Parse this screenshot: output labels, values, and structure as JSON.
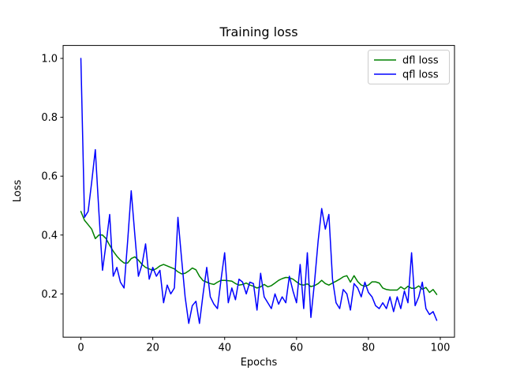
{
  "figure": {
    "background": "#ffffff"
  },
  "chart_data": {
    "type": "line",
    "title": "Training loss",
    "xlabel": "Epochs",
    "ylabel": "Loss",
    "x_is_index": true,
    "n_points": 100,
    "xlim": [
      -4.95,
      103.95
    ],
    "ylim": [
      0.053,
      1.044
    ],
    "x_ticks": [
      0,
      20,
      40,
      60,
      80,
      100
    ],
    "y_ticks": [
      0.2,
      0.4,
      0.6,
      0.8,
      1.0
    ],
    "grid": false,
    "legend_position": "upper right",
    "axis_color": "#000000",
    "series": [
      {
        "name": "dfl loss",
        "color": "#008000",
        "values": [
          0.48,
          0.45,
          0.435,
          0.42,
          0.388,
          0.4,
          0.4,
          0.388,
          0.365,
          0.345,
          0.328,
          0.315,
          0.305,
          0.305,
          0.32,
          0.326,
          0.315,
          0.3,
          0.29,
          0.285,
          0.28,
          0.286,
          0.295,
          0.3,
          0.295,
          0.29,
          0.285,
          0.275,
          0.268,
          0.27,
          0.278,
          0.288,
          0.282,
          0.26,
          0.245,
          0.24,
          0.235,
          0.232,
          0.24,
          0.246,
          0.246,
          0.245,
          0.243,
          0.235,
          0.23,
          0.232,
          0.237,
          0.23,
          0.226,
          0.22,
          0.224,
          0.232,
          0.224,
          0.228,
          0.237,
          0.246,
          0.252,
          0.256,
          0.255,
          0.25,
          0.241,
          0.232,
          0.23,
          0.234,
          0.225,
          0.228,
          0.235,
          0.246,
          0.235,
          0.23,
          0.237,
          0.243,
          0.25,
          0.258,
          0.262,
          0.24,
          0.262,
          0.242,
          0.23,
          0.226,
          0.23,
          0.241,
          0.241,
          0.237,
          0.22,
          0.215,
          0.213,
          0.213,
          0.213,
          0.224,
          0.216,
          0.226,
          0.219,
          0.219,
          0.227,
          0.216,
          0.222,
          0.205,
          0.215,
          0.198
        ]
      },
      {
        "name": "qfl loss",
        "color": "#0000ff",
        "values": [
          1.0,
          0.46,
          0.48,
          0.58,
          0.69,
          0.48,
          0.28,
          0.37,
          0.47,
          0.26,
          0.29,
          0.24,
          0.22,
          0.38,
          0.55,
          0.4,
          0.26,
          0.3,
          0.37,
          0.25,
          0.29,
          0.26,
          0.28,
          0.17,
          0.23,
          0.2,
          0.22,
          0.46,
          0.32,
          0.19,
          0.1,
          0.16,
          0.175,
          0.1,
          0.2,
          0.29,
          0.19,
          0.165,
          0.15,
          0.25,
          0.34,
          0.17,
          0.22,
          0.18,
          0.25,
          0.24,
          0.2,
          0.24,
          0.235,
          0.145,
          0.27,
          0.19,
          0.17,
          0.15,
          0.2,
          0.165,
          0.19,
          0.17,
          0.26,
          0.21,
          0.17,
          0.3,
          0.15,
          0.34,
          0.12,
          0.24,
          0.38,
          0.49,
          0.42,
          0.47,
          0.25,
          0.17,
          0.15,
          0.215,
          0.2,
          0.145,
          0.235,
          0.22,
          0.19,
          0.24,
          0.205,
          0.19,
          0.16,
          0.15,
          0.17,
          0.15,
          0.19,
          0.14,
          0.19,
          0.15,
          0.21,
          0.17,
          0.34,
          0.16,
          0.19,
          0.24,
          0.15,
          0.13,
          0.14,
          0.11
        ]
      }
    ]
  }
}
